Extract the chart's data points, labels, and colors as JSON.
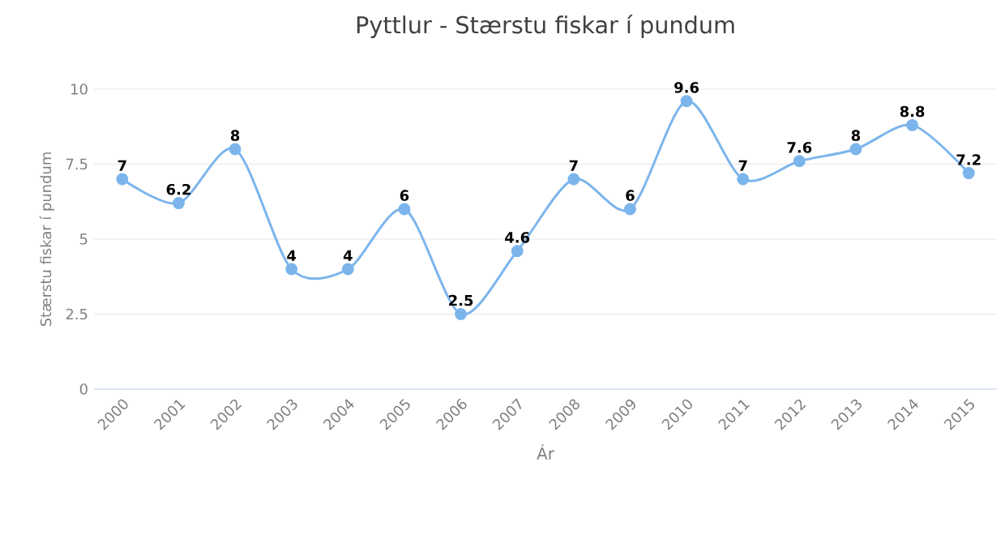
{
  "chart_data": {
    "type": "line",
    "title": "Pyttlur - Stærstu fiskar í pundum",
    "xlabel": "Ár",
    "ylabel": "Stærstu fiskar í pundum",
    "categories": [
      "2000",
      "2001",
      "2002",
      "2003",
      "2004",
      "2005",
      "2006",
      "2007",
      "2008",
      "2009",
      "2010",
      "2011",
      "2012",
      "2013",
      "2014",
      "2015"
    ],
    "values": [
      7,
      6.2,
      8,
      4,
      4,
      6,
      2.5,
      4.6,
      7,
      6,
      9.6,
      7,
      7.6,
      8,
      8.8,
      7.2
    ],
    "color": "#7cb5ec",
    "ylim": [
      0,
      10
    ],
    "yticks": [
      0,
      2.5,
      5,
      7.5,
      10
    ],
    "grid": "y",
    "marker": "circle",
    "line_style": "solid",
    "data_labels": true
  }
}
